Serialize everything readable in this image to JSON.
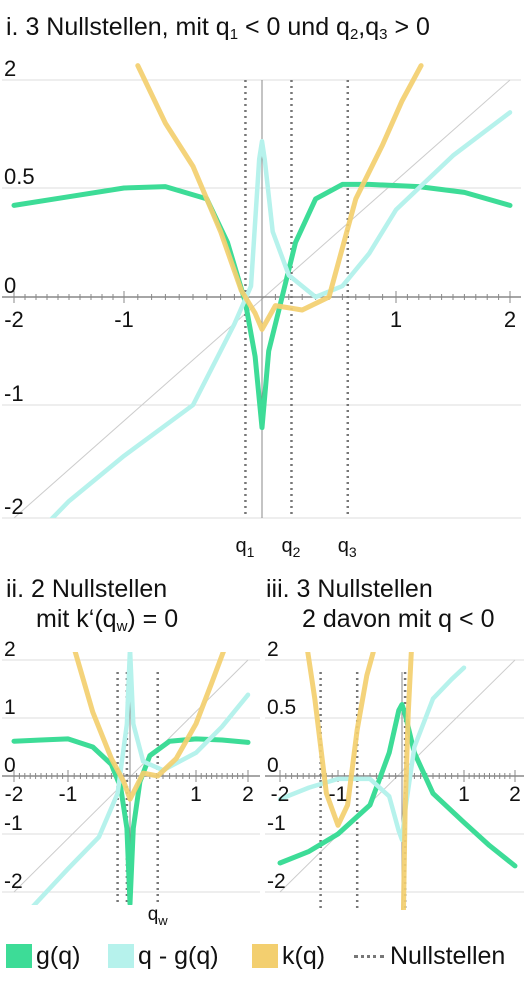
{
  "titles": {
    "panel1": {
      "prefix": "i. 3 Nullstellen, mit q",
      "s1": "1",
      "mid1": " < 0 und q",
      "s2": "2",
      "mid2": ",q",
      "s3": "3",
      "suffix": " > 0"
    },
    "panel2_line1": "ii. 2 Nullstellen",
    "panel2_line2": {
      "prefix": "mit k‘(q",
      "s": "w",
      "suffix": ") = 0"
    },
    "panel3_line1": "iii. 3 Nullstellen",
    "panel3_line2": "2 davon mit q < 0"
  },
  "colors": {
    "g": "#3ddc97",
    "qg": "#b6f2ec",
    "k": "#f3cf6f",
    "zeros": "#777777",
    "grid": "#dddddd",
    "axis": "#888888",
    "diag": "#cccccc"
  },
  "legend": {
    "g": "g(q)",
    "qg": "q - g(q)",
    "k": "k(q)",
    "zeros": "Nullstellen"
  },
  "chart_data": [
    {
      "type": "line",
      "title": "i. 3 Nullstellen, mit q1 < 0 und q2,q3 > 0",
      "xlim": [
        -2,
        2
      ],
      "xticks": [
        "-2",
        "-1",
        "0",
        "1",
        "2"
      ],
      "yticks": [
        "2",
        "0.5",
        "0",
        "-1",
        "-2"
      ],
      "zeros": [
        {
          "label": "q",
          "sub": "1",
          "x": -0.12
        },
        {
          "label": "q",
          "sub": "2",
          "x": 0.22
        },
        {
          "label": "q",
          "sub": "3",
          "x": 0.64
        }
      ],
      "series": [
        {
          "name": "g(q)",
          "x": [
            -2,
            -1.5,
            -1,
            -0.7,
            -0.4,
            -0.25,
            -0.12,
            -0.05,
            0,
            0.05,
            0.12,
            0.25,
            0.4,
            0.6,
            0.8,
            1.2,
            1.6,
            2
          ],
          "y": [
            0.42,
            0.46,
            0.5,
            0.52,
            0.45,
            0.25,
            -0.05,
            -0.55,
            -1.2,
            -0.5,
            -0.15,
            0.25,
            0.45,
            0.55,
            0.55,
            0.52,
            0.48,
            0.42
          ]
        },
        {
          "name": "q - g(q)",
          "x": [
            -1.85,
            -1.5,
            -1,
            -0.5,
            -0.2,
            -0.08,
            -0.02,
            0,
            0.02,
            0.08,
            0.2,
            0.4,
            0.6,
            0.8,
            1,
            1.5,
            2
          ],
          "y": [
            -2.2,
            -1.85,
            -1.45,
            -1.0,
            -0.25,
            0.05,
            0.9,
            1.15,
            0.9,
            0.3,
            0.1,
            0.0,
            0.05,
            0.2,
            0.4,
            0.95,
            1.55
          ]
        },
        {
          "name": "k(q)",
          "x": [
            -0.9,
            -0.7,
            -0.5,
            -0.3,
            -0.15,
            -0.05,
            0,
            0.1,
            0.3,
            0.5,
            0.7,
            0.9,
            1.05,
            1.22
          ],
          "y": [
            2.2,
            1.4,
            0.8,
            0.3,
            0.03,
            -0.15,
            -0.3,
            -0.08,
            -0.12,
            0.0,
            0.45,
            1.1,
            1.7,
            2.2
          ]
        }
      ]
    },
    {
      "type": "line",
      "title": "ii. 2 Nullstellen mit k‘(qw) = 0",
      "xlim": [
        -2,
        2
      ],
      "xticks": [
        "-2",
        "-1",
        "0",
        "1",
        "2"
      ],
      "yticks": [
        "2",
        "1",
        "0",
        "-1",
        "-2"
      ],
      "zeros": [
        {
          "label": "",
          "sub": "",
          "x": -0.2
        },
        {
          "label": "",
          "sub": "",
          "x": -0.05
        },
        {
          "label": "q",
          "sub": "w",
          "x": 0.42
        }
      ],
      "series": [
        {
          "name": "g(q)",
          "x": [
            -2,
            -1.5,
            -1,
            -0.6,
            -0.3,
            -0.15,
            -0.05,
            0,
            0.05,
            0.15,
            0.3,
            0.6,
            1,
            1.5,
            2
          ],
          "y": [
            0.6,
            0.62,
            0.64,
            0.5,
            0.2,
            -0.2,
            -0.9,
            -2.2,
            -0.9,
            -0.1,
            0.35,
            0.6,
            0.64,
            0.62,
            0.58
          ]
        },
        {
          "name": "q - g(q)",
          "x": [
            -2,
            -1.5,
            -1,
            -0.5,
            -0.2,
            -0.05,
            0,
            0.05,
            0.2,
            0.5,
            1,
            1.5,
            2
          ],
          "y": [
            -2.6,
            -2.1,
            -1.6,
            -1.05,
            -0.3,
            0.9,
            2.2,
            0.9,
            0.25,
            0.1,
            0.4,
            0.85,
            1.4
          ]
        },
        {
          "name": "k(q)",
          "x": [
            -0.9,
            -0.6,
            -0.3,
            -0.1,
            0,
            0.2,
            0.42,
            0.7,
            1,
            1.3,
            1.55
          ],
          "y": [
            2.2,
            1.1,
            0.3,
            -0.1,
            -0.4,
            0.05,
            0.0,
            0.3,
            0.9,
            1.6,
            2.2
          ]
        }
      ]
    },
    {
      "type": "line",
      "title": "iii. 3 Nullstellen 2 davon mit q < 0",
      "xlim": [
        -2,
        2
      ],
      "xticks": [
        "-2",
        "-1",
        "0",
        "1",
        "2"
      ],
      "yticks": [
        "2",
        "0.5",
        "0",
        "-1",
        "-2"
      ],
      "zeros": [
        {
          "label": "",
          "sub": "",
          "x": -1.3
        },
        {
          "label": "",
          "sub": "",
          "x": -0.7
        },
        {
          "label": "",
          "sub": "",
          "x": 0.05
        }
      ],
      "series": [
        {
          "name": "g(q)",
          "x": [
            -2,
            -1.5,
            -1,
            -0.5,
            -0.2,
            -0.05,
            0,
            0.05,
            0.2,
            0.5,
            1,
            1.5,
            2
          ],
          "y": [
            -1.5,
            -1.3,
            -1.0,
            -0.5,
            0.2,
            0.7,
            0.85,
            0.6,
            0.2,
            -0.3,
            -0.8,
            -1.2,
            -1.55
          ]
        },
        {
          "name": "q - g(q)",
          "x": [
            -2,
            -1.5,
            -1,
            -0.5,
            -0.2,
            -0.05,
            0,
            0.05,
            0.2,
            0.5,
            0.8,
            1
          ],
          "y": [
            -0.4,
            -0.2,
            -0.05,
            -0.05,
            -0.35,
            -0.95,
            -1.1,
            -0.6,
            0.25,
            1.0,
            1.5,
            1.8
          ]
        },
        {
          "name": "k(q)",
          "x": [
            -1.52,
            -1.4,
            -1.2,
            -1.0,
            -0.85,
            -0.7,
            -0.55,
            -0.45
          ],
          "y": [
            2.2,
            1.0,
            -0.3,
            -0.85,
            -0.5,
            0.4,
            1.6,
            2.2
          ]
        },
        {
          "name": "k(q)",
          "x": [
            0.02,
            0.05,
            0.1,
            0.15
          ],
          "y": [
            -2.6,
            -0.6,
            0.6,
            2.2
          ]
        }
      ]
    }
  ]
}
